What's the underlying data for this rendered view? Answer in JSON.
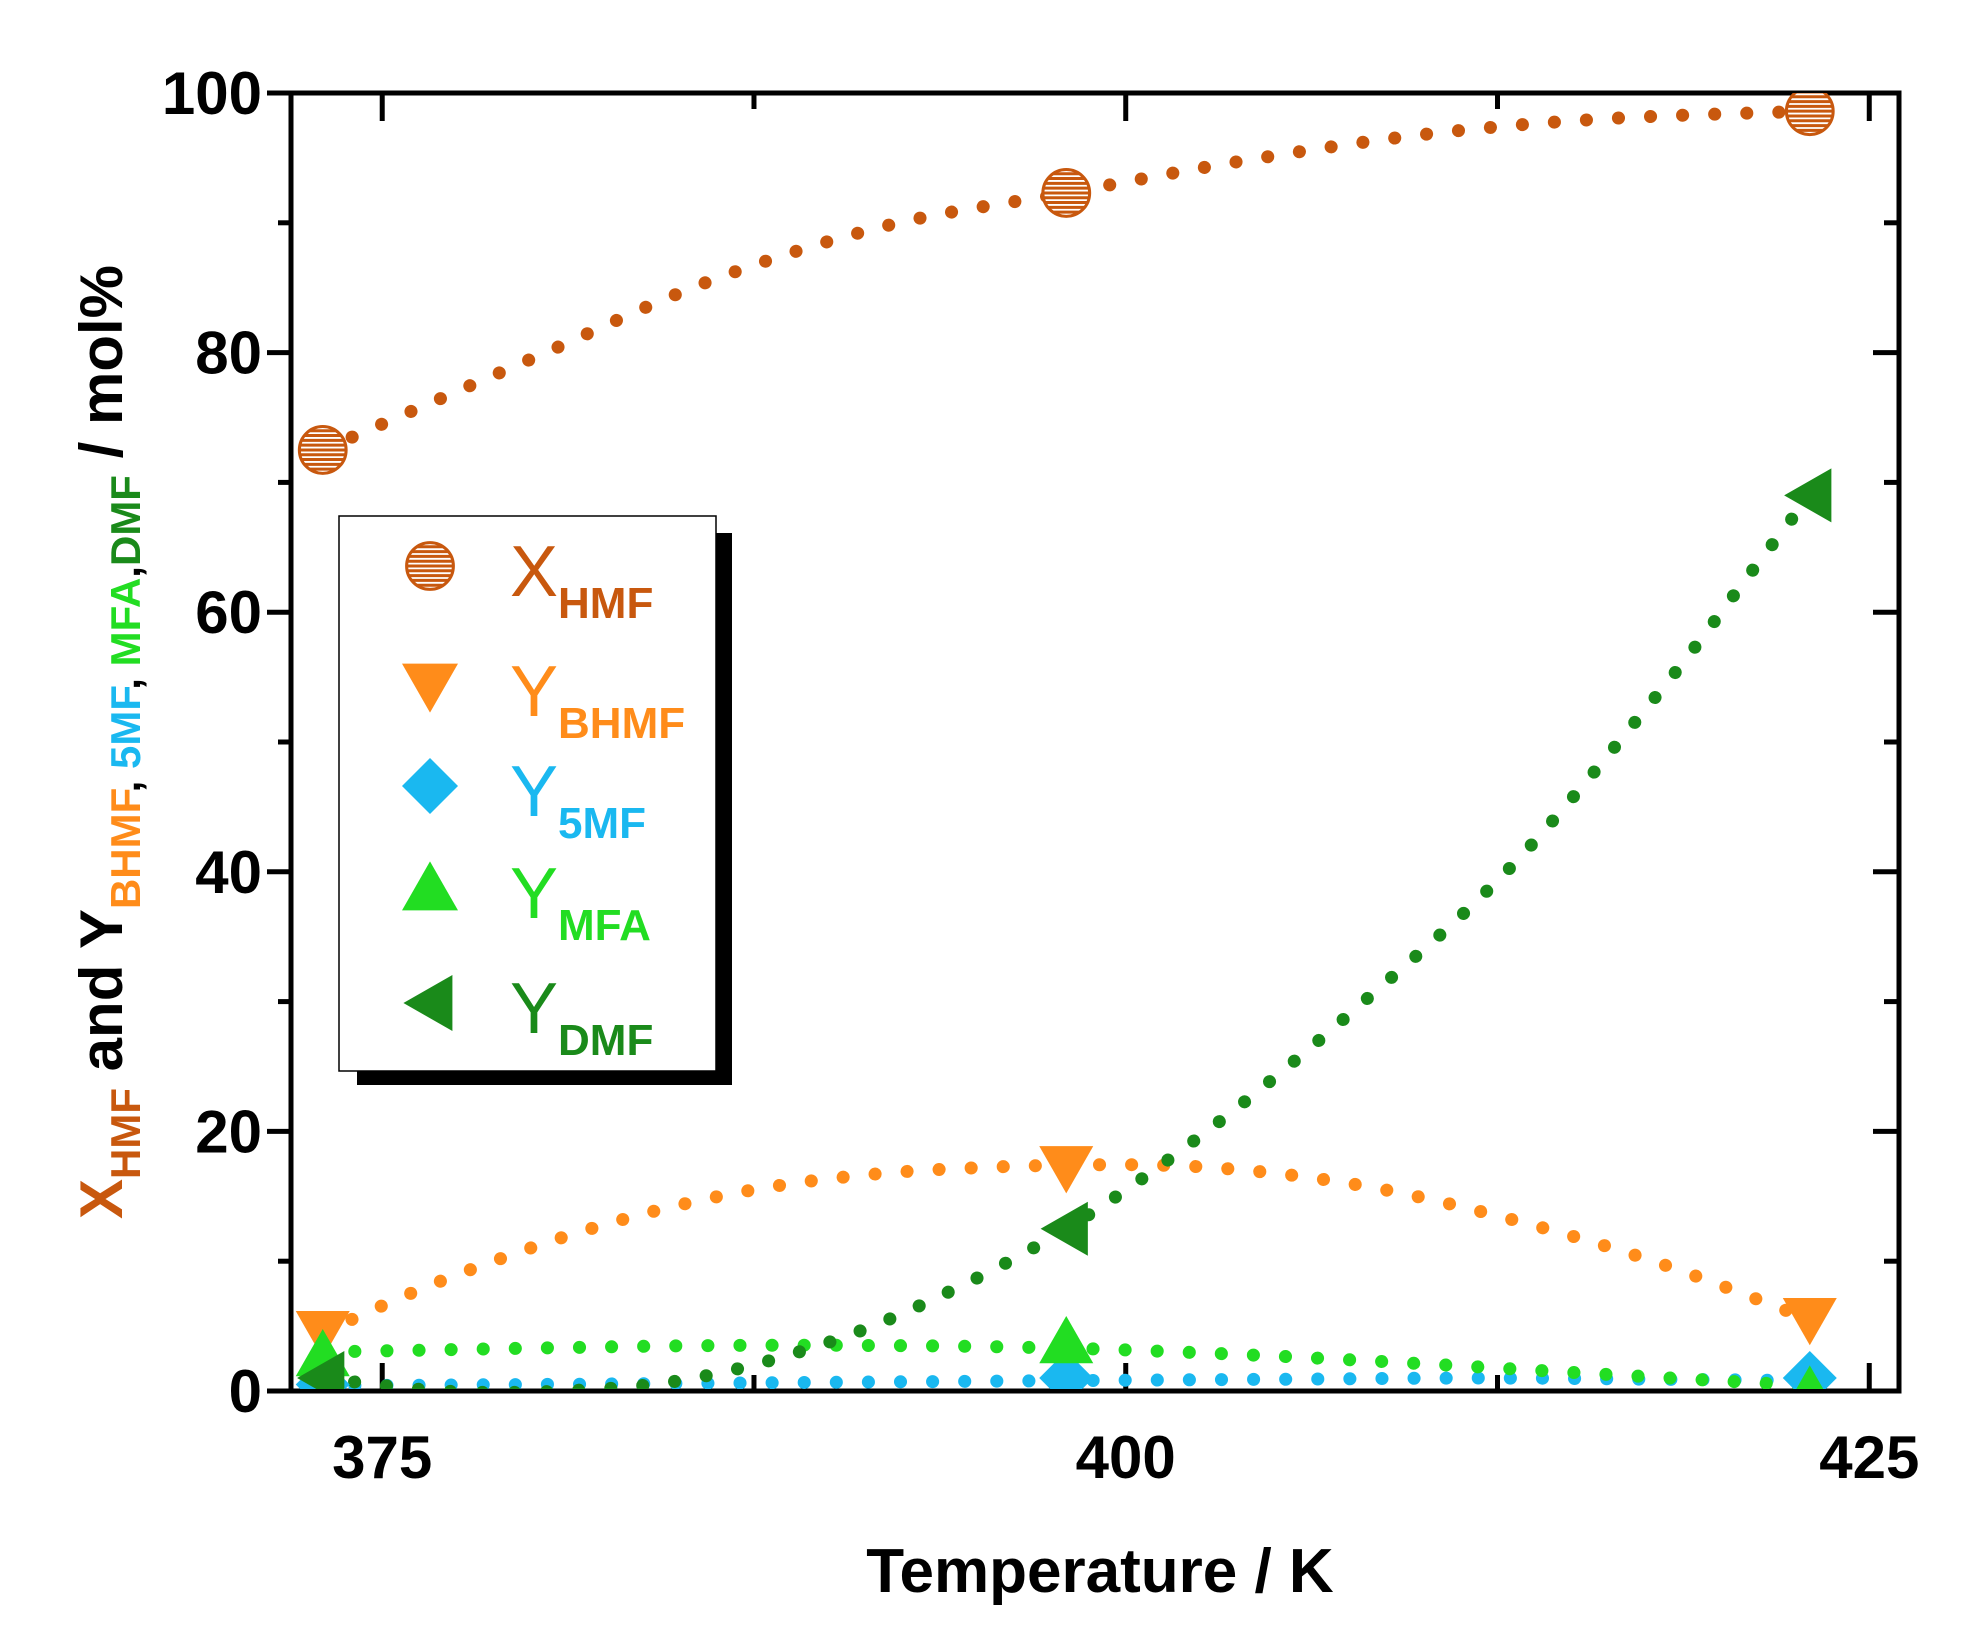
{
  "chart_data": {
    "type": "scatter",
    "title": "",
    "xlabel": "Temperature / K",
    "ylabel": {
      "parts": [
        {
          "text": "X",
          "sub": false,
          "color": "#c8580e"
        },
        {
          "text": "HMF",
          "sub": true,
          "color": "#c8580e"
        },
        {
          "text": " and Y",
          "sub": false,
          "color": "#000000"
        },
        {
          "text": "BHMF",
          "sub": true,
          "color": "#ff8c1a"
        },
        {
          "text": ", ",
          "sub": true,
          "color": "#000000"
        },
        {
          "text": "5MF",
          "sub": true,
          "color": "#1ab8f0"
        },
        {
          "text": ", ",
          "sub": true,
          "color": "#000000"
        },
        {
          "text": "MFA",
          "sub": true,
          "color": "#22dd22"
        },
        {
          "text": ",",
          "sub": true,
          "color": "#000000"
        },
        {
          "text": "DMF",
          "sub": true,
          "color": "#1a8a1a"
        },
        {
          "text": " / mol%",
          "sub": false,
          "color": "#000000"
        }
      ]
    },
    "xlim": [
      372,
      426
    ],
    "ylim": [
      0,
      100
    ],
    "x_ticks": [
      375,
      400,
      425
    ],
    "y_ticks": [
      0,
      20,
      40,
      60,
      80,
      100
    ],
    "legend_position": "left",
    "series": [
      {
        "key": "xhmf",
        "name_main": "X",
        "name_sub": "HMF",
        "marker": "circle-striped",
        "color": "#c8580e",
        "x": [
          373,
          398,
          423
        ],
        "y": [
          72.5,
          92.3,
          98.6
        ],
        "fit": [
          [
            373,
            72.5
          ],
          [
            380,
            79.5
          ],
          [
            386,
            85.5
          ],
          [
            392,
            89.8
          ],
          [
            398,
            92.3
          ],
          [
            404,
            94.8
          ],
          [
            410,
            96.8
          ],
          [
            416,
            98.0
          ],
          [
            423,
            98.6
          ]
        ]
      },
      {
        "key": "ybhmf",
        "name_main": "Y",
        "name_sub": "BHMF",
        "marker": "triangle-down",
        "color": "#ff8c1a",
        "x": [
          373,
          398,
          423
        ],
        "y": [
          4.5,
          17.2,
          5.5
        ],
        "fit": [
          [
            373,
            4.5
          ],
          [
            377,
            8.5
          ],
          [
            382,
            12.5
          ],
          [
            387,
            15.3
          ],
          [
            392,
            16.8
          ],
          [
            398,
            17.4
          ],
          [
            403,
            17.2
          ],
          [
            408,
            15.8
          ],
          [
            413,
            13.2
          ],
          [
            418,
            9.8
          ],
          [
            423,
            5.5
          ]
        ]
      },
      {
        "key": "y5mf",
        "name_main": "Y",
        "name_sub": "5MF",
        "marker": "diamond",
        "color": "#1ab8f0",
        "x": [
          373,
          398,
          423
        ],
        "y": [
          0.5,
          1.0,
          1.0
        ],
        "fit": [
          [
            373,
            0.4
          ],
          [
            380,
            0.5
          ],
          [
            386,
            0.6
          ],
          [
            392,
            0.7
          ],
          [
            398,
            0.8
          ],
          [
            405,
            0.9
          ],
          [
            412,
            1.0
          ],
          [
            418,
            0.9
          ],
          [
            423,
            0.8
          ]
        ]
      },
      {
        "key": "ymfa",
        "name_main": "Y",
        "name_sub": "MFA",
        "marker": "triangle-up",
        "color": "#22dd22",
        "x": [
          373,
          398,
          423
        ],
        "y": [
          2.8,
          3.8,
          0.0
        ],
        "fit": [
          [
            373,
            3.0
          ],
          [
            380,
            3.3
          ],
          [
            386,
            3.5
          ],
          [
            392,
            3.5
          ],
          [
            398,
            3.3
          ],
          [
            404,
            2.8
          ],
          [
            410,
            2.1
          ],
          [
            416,
            1.3
          ],
          [
            423,
            0.4
          ]
        ]
      },
      {
        "key": "ydmf",
        "name_main": "Y",
        "name_sub": "DMF",
        "marker": "triangle-left",
        "color": "#1a8a1a",
        "x": [
          373,
          398,
          423
        ],
        "y": [
          1.0,
          12.5,
          69.0
        ],
        "fit": [
          [
            373,
            1.0
          ],
          [
            377,
            0.0
          ],
          [
            381,
            0.0
          ],
          [
            385,
            0.8
          ],
          [
            389,
            3.0
          ],
          [
            393,
            6.5
          ],
          [
            398,
            12.5
          ],
          [
            403,
            20.5
          ],
          [
            408,
            30.0
          ],
          [
            413,
            40.5
          ],
          [
            418,
            54.0
          ],
          [
            421,
            63.0
          ],
          [
            423,
            69.0
          ]
        ]
      }
    ]
  }
}
